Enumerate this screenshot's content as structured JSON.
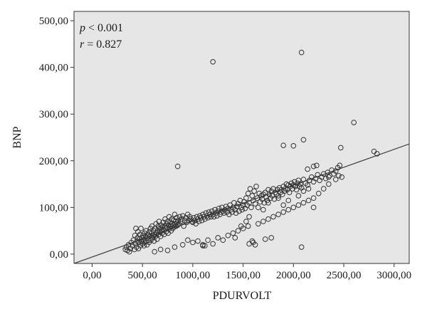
{
  "chart_data": {
    "type": "scatter",
    "title": "",
    "xlabel": "PDURVOLT",
    "ylabel": "BNP",
    "xlim": [
      -180,
      3150
    ],
    "ylim": [
      -20,
      520
    ],
    "x_ticks": [
      0,
      500,
      1000,
      1500,
      2000,
      2500,
      3000
    ],
    "x_tick_labels": [
      "0,00",
      "500,00",
      "1000,00",
      "1500,00",
      "2000,00",
      "2500,00",
      "3000,00"
    ],
    "y_ticks": [
      0,
      100,
      200,
      300,
      400,
      500
    ],
    "y_tick_labels": [
      "0,00",
      "100,00",
      "200,00",
      "300,00",
      "400,00",
      "500,00"
    ],
    "grid": false,
    "plot_background": "#e6e6e6",
    "point_color": "#333333",
    "annotations": {
      "p_symbol": "p",
      "p_rest": " < 0.001",
      "r_symbol": "r",
      "r_rest": " = 0.827"
    },
    "fit_line": {
      "x": [
        -180,
        3150
      ],
      "y": [
        -20,
        236
      ]
    },
    "points": [
      [
        330,
        10
      ],
      [
        340,
        15
      ],
      [
        350,
        8
      ],
      [
        360,
        20
      ],
      [
        370,
        5
      ],
      [
        380,
        12
      ],
      [
        390,
        25
      ],
      [
        400,
        18
      ],
      [
        410,
        30
      ],
      [
        420,
        10
      ],
      [
        425,
        40
      ],
      [
        430,
        22
      ],
      [
        435,
        55
      ],
      [
        440,
        15
      ],
      [
        445,
        28
      ],
      [
        450,
        35
      ],
      [
        455,
        48
      ],
      [
        460,
        12
      ],
      [
        465,
        25
      ],
      [
        470,
        32
      ],
      [
        475,
        42
      ],
      [
        480,
        18
      ],
      [
        485,
        55
      ],
      [
        490,
        28
      ],
      [
        495,
        35
      ],
      [
        500,
        22
      ],
      [
        505,
        40
      ],
      [
        510,
        30
      ],
      [
        515,
        18
      ],
      [
        520,
        45
      ],
      [
        525,
        25
      ],
      [
        530,
        38
      ],
      [
        535,
        50
      ],
      [
        540,
        28
      ],
      [
        545,
        20
      ],
      [
        550,
        35
      ],
      [
        555,
        42
      ],
      [
        560,
        30
      ],
      [
        565,
        25
      ],
      [
        570,
        48
      ],
      [
        575,
        38
      ],
      [
        580,
        55
      ],
      [
        585,
        30
      ],
      [
        590,
        45
      ],
      [
        595,
        60
      ],
      [
        600,
        35
      ],
      [
        605,
        40
      ],
      [
        610,
        50
      ],
      [
        615,
        28
      ],
      [
        620,
        42
      ],
      [
        625,
        55
      ],
      [
        630,
        38
      ],
      [
        635,
        65
      ],
      [
        640,
        45
      ],
      [
        645,
        32
      ],
      [
        650,
        50
      ],
      [
        655,
        60
      ],
      [
        660,
        42
      ],
      [
        665,
        70
      ],
      [
        670,
        48
      ],
      [
        675,
        55
      ],
      [
        680,
        38
      ],
      [
        685,
        62
      ],
      [
        690,
        50
      ],
      [
        695,
        45
      ],
      [
        700,
        58
      ],
      [
        705,
        68
      ],
      [
        710,
        52
      ],
      [
        715,
        42
      ],
      [
        720,
        60
      ],
      [
        725,
        75
      ],
      [
        730,
        55
      ],
      [
        735,
        48
      ],
      [
        740,
        65
      ],
      [
        745,
        58
      ],
      [
        750,
        70
      ],
      [
        755,
        45
      ],
      [
        760,
        62
      ],
      [
        765,
        80
      ],
      [
        770,
        55
      ],
      [
        775,
        68
      ],
      [
        780,
        60
      ],
      [
        785,
        50
      ],
      [
        790,
        75
      ],
      [
        795,
        65
      ],
      [
        800,
        55
      ],
      [
        805,
        62
      ],
      [
        810,
        72
      ],
      [
        815,
        58
      ],
      [
        820,
        85
      ],
      [
        825,
        65
      ],
      [
        830,
        70
      ],
      [
        835,
        60
      ],
      [
        840,
        78
      ],
      [
        845,
        68
      ],
      [
        850,
        62
      ],
      [
        855,
        72
      ],
      [
        860,
        65
      ],
      [
        870,
        80
      ],
      [
        880,
        70
      ],
      [
        890,
        75
      ],
      [
        900,
        82
      ],
      [
        910,
        60
      ],
      [
        920,
        72
      ],
      [
        930,
        78
      ],
      [
        940,
        68
      ],
      [
        950,
        85
      ],
      [
        960,
        72
      ],
      [
        970,
        80
      ],
      [
        980,
        75
      ],
      [
        990,
        70
      ],
      [
        1000,
        68
      ],
      [
        1010,
        78
      ],
      [
        1020,
        72
      ],
      [
        1030,
        65
      ],
      [
        1040,
        80
      ],
      [
        1050,
        75
      ],
      [
        1060,
        70
      ],
      [
        1070,
        82
      ],
      [
        1080,
        78
      ],
      [
        1090,
        72
      ],
      [
        1100,
        85
      ],
      [
        1110,
        80
      ],
      [
        1120,
        75
      ],
      [
        1130,
        88
      ],
      [
        1140,
        82
      ],
      [
        1150,
        78
      ],
      [
        1160,
        90
      ],
      [
        1170,
        85
      ],
      [
        1180,
        80
      ],
      [
        1190,
        92
      ],
      [
        1200,
        85
      ],
      [
        1210,
        80
      ],
      [
        1220,
        95
      ],
      [
        1230,
        88
      ],
      [
        1240,
        82
      ],
      [
        1250,
        92
      ],
      [
        1260,
        98
      ],
      [
        1270,
        85
      ],
      [
        1280,
        90
      ],
      [
        1290,
        100
      ],
      [
        1300,
        92
      ],
      [
        1310,
        88
      ],
      [
        1320,
        95
      ],
      [
        1330,
        102
      ],
      [
        1340,
        90
      ],
      [
        1350,
        98
      ],
      [
        1360,
        85
      ],
      [
        1370,
        105
      ],
      [
        1380,
        95
      ],
      [
        1390,
        90
      ],
      [
        1400,
        100
      ],
      [
        1410,
        110
      ],
      [
        1420,
        95
      ],
      [
        1430,
        88
      ],
      [
        1440,
        102
      ],
      [
        1450,
        108
      ],
      [
        1460,
        92
      ],
      [
        1470,
        115
      ],
      [
        1480,
        100
      ],
      [
        1490,
        95
      ],
      [
        1500,
        105
      ],
      [
        1510,
        112
      ],
      [
        1520,
        98
      ],
      [
        1530,
        120
      ],
      [
        1540,
        105
      ],
      [
        1550,
        130
      ],
      [
        1560,
        110
      ],
      [
        1570,
        140
      ],
      [
        1580,
        100
      ],
      [
        1590,
        125
      ],
      [
        1600,
        115
      ],
      [
        1610,
        135
      ],
      [
        1620,
        108
      ],
      [
        1630,
        145
      ],
      [
        1640,
        120
      ],
      [
        1650,
        100
      ],
      [
        1660,
        130
      ],
      [
        1670,
        112
      ],
      [
        1680,
        125
      ],
      [
        1690,
        118
      ],
      [
        1700,
        128
      ],
      [
        1710,
        110
      ],
      [
        1720,
        132
      ],
      [
        1730,
        122
      ],
      [
        1740,
        115
      ],
      [
        1750,
        138
      ],
      [
        1760,
        128
      ],
      [
        1770,
        120
      ],
      [
        1780,
        135
      ],
      [
        1790,
        125
      ],
      [
        1800,
        140
      ],
      [
        1810,
        118
      ],
      [
        1820,
        132
      ],
      [
        1830,
        128
      ],
      [
        1840,
        138
      ],
      [
        1850,
        125
      ],
      [
        1860,
        142
      ],
      [
        1870,
        132
      ],
      [
        1880,
        138
      ],
      [
        1890,
        128
      ],
      [
        1900,
        145
      ],
      [
        1910,
        135
      ],
      [
        1920,
        140
      ],
      [
        1930,
        150
      ],
      [
        1940,
        138
      ],
      [
        1950,
        148
      ],
      [
        1960,
        132
      ],
      [
        1970,
        145
      ],
      [
        1980,
        152
      ],
      [
        1990,
        140
      ],
      [
        2000,
        148
      ],
      [
        2010,
        155
      ],
      [
        2020,
        145
      ],
      [
        2030,
        138
      ],
      [
        2040,
        152
      ],
      [
        2050,
        158
      ],
      [
        2060,
        145
      ],
      [
        2070,
        150
      ],
      [
        2080,
        142
      ],
      [
        2100,
        160
      ],
      [
        2120,
        152
      ],
      [
        2140,
        148
      ],
      [
        2160,
        158
      ],
      [
        2180,
        165
      ],
      [
        2200,
        155
      ],
      [
        2220,
        162
      ],
      [
        2240,
        170
      ],
      [
        2260,
        158
      ],
      [
        2280,
        165
      ],
      [
        2300,
        172
      ],
      [
        2320,
        162
      ],
      [
        2340,
        175
      ],
      [
        2360,
        168
      ],
      [
        2380,
        180
      ],
      [
        2400,
        172
      ],
      [
        2420,
        178
      ],
      [
        2440,
        185
      ],
      [
        2450,
        168
      ],
      [
        2460,
        190
      ],
      [
        2800,
        220
      ],
      [
        2830,
        215
      ],
      [
        620,
        5
      ],
      [
        680,
        10
      ],
      [
        750,
        8
      ],
      [
        820,
        15
      ],
      [
        900,
        20
      ],
      [
        950,
        30
      ],
      [
        1000,
        25
      ],
      [
        1050,
        28
      ],
      [
        1100,
        18
      ],
      [
        1150,
        30
      ],
      [
        1200,
        22
      ],
      [
        1250,
        35
      ],
      [
        1300,
        30
      ],
      [
        1350,
        40
      ],
      [
        1400,
        45
      ],
      [
        1450,
        50
      ],
      [
        1500,
        55
      ],
      [
        1550,
        60
      ],
      [
        1600,
        25
      ],
      [
        1650,
        65
      ],
      [
        1700,
        70
      ],
      [
        1750,
        75
      ],
      [
        1800,
        80
      ],
      [
        1850,
        85
      ],
      [
        1900,
        90
      ],
      [
        1950,
        95
      ],
      [
        2000,
        100
      ],
      [
        2050,
        105
      ],
      [
        2100,
        110
      ],
      [
        2150,
        115
      ],
      [
        2200,
        120
      ],
      [
        2250,
        130
      ],
      [
        2300,
        140
      ],
      [
        2350,
        150
      ],
      [
        1100,
        20
      ],
      [
        1120,
        18
      ],
      [
        1560,
        22
      ],
      [
        1590,
        28
      ],
      [
        1620,
        20
      ],
      [
        1720,
        32
      ],
      [
        1780,
        35
      ],
      [
        2080,
        15
      ],
      [
        2200,
        100
      ],
      [
        1420,
        35
      ],
      [
        1480,
        60
      ],
      [
        1530,
        70
      ],
      [
        1560,
        80
      ],
      [
        1700,
        95
      ],
      [
        1750,
        110
      ],
      [
        1850,
        120
      ],
      [
        1900,
        105
      ],
      [
        1950,
        115
      ],
      [
        2050,
        125
      ],
      [
        2100,
        135
      ],
      [
        2150,
        140
      ],
      [
        850,
        188
      ],
      [
        1200,
        412
      ],
      [
        2080,
        432
      ],
      [
        2600,
        282
      ],
      [
        1900,
        233
      ],
      [
        2000,
        232
      ],
      [
        2100,
        245
      ],
      [
        2140,
        182
      ],
      [
        2200,
        188
      ],
      [
        2230,
        190
      ],
      [
        2470,
        228
      ],
      [
        2480,
        165
      ],
      [
        2420,
        160
      ],
      [
        2350,
        165
      ]
    ]
  }
}
